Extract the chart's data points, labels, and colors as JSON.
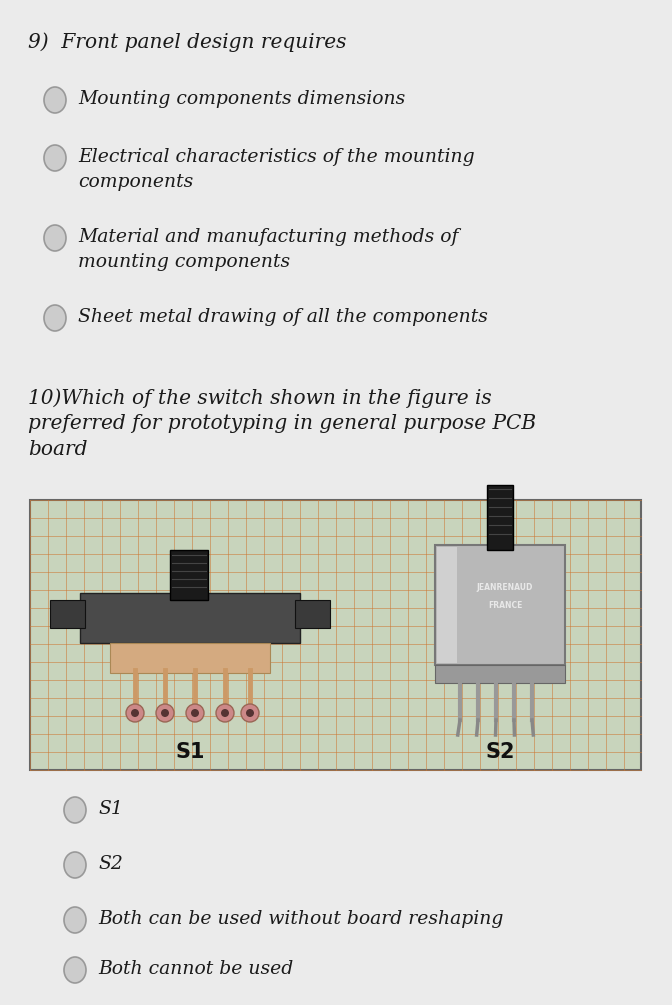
{
  "bg_color": "#ebebeb",
  "q9_title": "9)  Front panel design requires",
  "q9_options": [
    "Mounting components dimensions",
    "Electrical characteristics of the mounting\ncomponents",
    "Material and manufacturing methods of\nmounting components",
    "Sheet metal drawing of all the components"
  ],
  "q10_title": "10)Which of the switch shown in the figure is\npreferred for prototyping in general purpose PCB\nboard",
  "q10_options": [
    "S1",
    "S2",
    "Both can be used without board reshaping",
    "Both cannot be used"
  ],
  "radio_color": "#cccccc",
  "radio_edge": "#999999",
  "text_color": "#1a1a1a",
  "title_fontsize": 14.5,
  "option_fontsize": 13.5,
  "font_family": "DejaVu Serif",
  "img_bg": "#c8d8c0",
  "grid_color": "#cc7733",
  "grid_alpha": 0.55
}
